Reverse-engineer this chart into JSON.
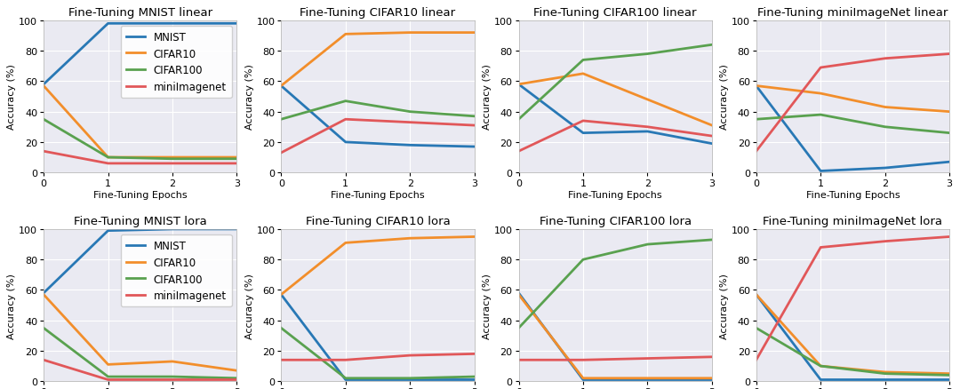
{
  "titles": [
    "Fine-Tuning MNIST linear",
    "Fine-Tuning CIFAR10 linear",
    "Fine-Tuning CIFAR100 linear",
    "Fine-Tuning miniImageNet linear",
    "Fine-Tuning MNIST lora",
    "Fine-Tuning CIFAR10 lora",
    "Fine-Tuning CIFAR100 lora",
    "Fine-Tuning miniImageNet lora"
  ],
  "xlabel": "Fine-Tuning Epochs",
  "ylabel": "Accuracy (%)",
  "legend_labels": [
    "MNIST",
    "CIFAR10",
    "CIFAR100",
    "miniImagenet"
  ],
  "colors": [
    "#2878b5",
    "#f28e2b",
    "#59a14f",
    "#e15759"
  ],
  "x": [
    0,
    1,
    2,
    3
  ],
  "ylim": [
    0,
    100
  ],
  "yticks": [
    0,
    20,
    40,
    60,
    80,
    100
  ],
  "xticks": [
    0,
    1,
    2,
    3
  ],
  "series": {
    "mnist_linear": {
      "MNIST": [
        58,
        98,
        98,
        98
      ],
      "CIFAR10": [
        57,
        10,
        10,
        10
      ],
      "CIFAR100": [
        35,
        10,
        9,
        9
      ],
      "miniImagenet": [
        14,
        6,
        6,
        6
      ]
    },
    "cifar10_linear": {
      "MNIST": [
        57,
        20,
        18,
        17
      ],
      "CIFAR10": [
        57,
        91,
        92,
        92
      ],
      "CIFAR100": [
        35,
        47,
        40,
        37
      ],
      "miniImagenet": [
        13,
        35,
        33,
        31
      ]
    },
    "cifar100_linear": {
      "MNIST": [
        58,
        26,
        27,
        19
      ],
      "CIFAR10": [
        58,
        65,
        48,
        31
      ],
      "CIFAR100": [
        35,
        74,
        78,
        84
      ],
      "miniImagenet": [
        14,
        34,
        30,
        24
      ]
    },
    "miniimagenet_linear": {
      "MNIST": [
        57,
        1,
        3,
        7
      ],
      "CIFAR10": [
        57,
        52,
        43,
        40
      ],
      "CIFAR100": [
        35,
        38,
        30,
        26
      ],
      "miniImagenet": [
        14,
        69,
        75,
        78
      ]
    },
    "mnist_lora": {
      "MNIST": [
        58,
        99,
        100,
        100
      ],
      "CIFAR10": [
        57,
        11,
        13,
        7
      ],
      "CIFAR100": [
        35,
        3,
        3,
        2
      ],
      "miniImagenet": [
        14,
        1,
        1,
        1
      ]
    },
    "cifar10_lora": {
      "MNIST": [
        57,
        1,
        1,
        1
      ],
      "CIFAR10": [
        57,
        91,
        94,
        95
      ],
      "CIFAR100": [
        35,
        2,
        2,
        3
      ],
      "miniImagenet": [
        14,
        14,
        17,
        18
      ]
    },
    "cifar100_lora": {
      "MNIST": [
        58,
        1,
        1,
        1
      ],
      "CIFAR10": [
        57,
        2,
        2,
        2
      ],
      "CIFAR100": [
        35,
        80,
        90,
        93
      ],
      "miniImagenet": [
        14,
        14,
        15,
        16
      ]
    },
    "miniimagenet_lora": {
      "MNIST": [
        57,
        1,
        1,
        1
      ],
      "CIFAR10": [
        57,
        10,
        6,
        5
      ],
      "CIFAR100": [
        35,
        10,
        5,
        4
      ],
      "miniImagenet": [
        14,
        88,
        92,
        95
      ]
    }
  },
  "show_legend": [
    true,
    false,
    false,
    false,
    true,
    false,
    false,
    false
  ],
  "background_color": "#eaeaf2",
  "figure_facecolor": "#ffffff",
  "linewidth": 2.0,
  "title_fontsize": 9.5,
  "label_fontsize": 8.0,
  "tick_fontsize": 8.0,
  "legend_fontsize": 8.5
}
